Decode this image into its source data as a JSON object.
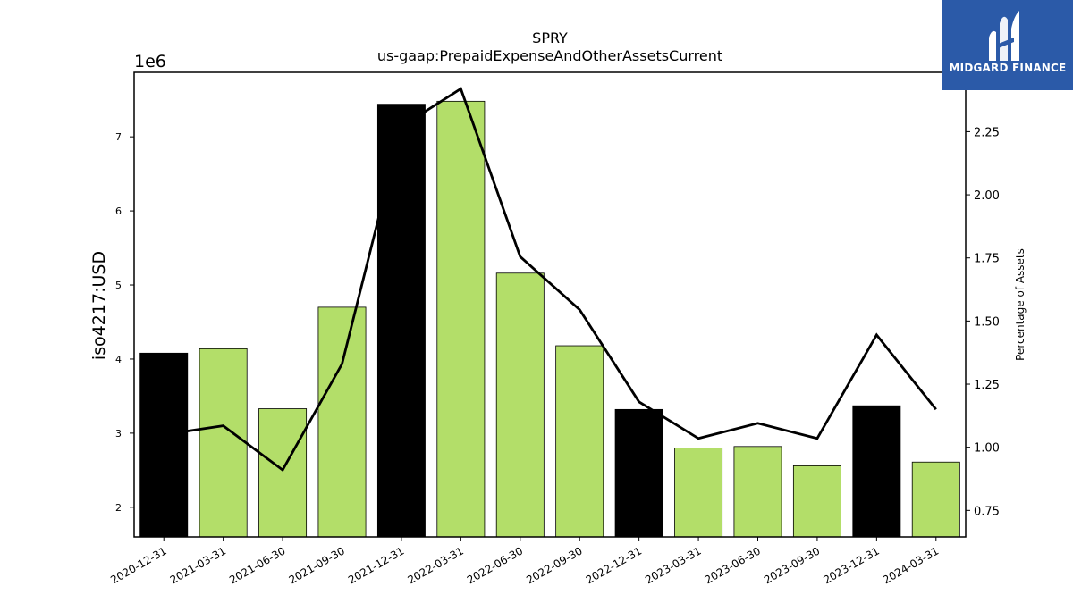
{
  "chart_data": {
    "type": "bar",
    "title": "SPRY",
    "subtitle": "us-gaap:PrepaidExpenseAndOtherAssetsCurrent",
    "ylabel": "iso4217:USD",
    "y_offset_label": "1e6",
    "y2label": "Percentage of Assets",
    "categories": [
      "2020-12-31",
      "2021-03-31",
      "2021-06-30",
      "2021-09-30",
      "2021-12-31",
      "2022-03-31",
      "2022-06-30",
      "2022-09-30",
      "2022-12-31",
      "2023-03-31",
      "2023-06-30",
      "2023-09-30",
      "2023-12-31",
      "2024-03-31"
    ],
    "series": [
      {
        "values": [
          4.08,
          4.14,
          3.33,
          4.7,
          7.44,
          7.48,
          5.16,
          4.18,
          3.32,
          2.8,
          2.82,
          2.56,
          3.37,
          2.61
        ],
        "colors": [
          "#000000",
          "#b3de69",
          "#b3de69",
          "#b3de69",
          "#000000",
          "#b3de69",
          "#b3de69",
          "#b3de69",
          "#000000",
          "#b3de69",
          "#b3de69",
          "#b3de69",
          "#000000",
          "#b3de69"
        ]
      },
      {
        "axis": "right",
        "type": "line",
        "values": [
          1.05,
          1.085,
          0.91,
          1.33,
          2.27,
          2.42,
          1.755,
          1.545,
          1.18,
          1.035,
          1.095,
          1.035,
          1.445,
          1.15
        ]
      }
    ],
    "y_ticks": [
      "2",
      "3",
      "4",
      "5",
      "6",
      "7"
    ],
    "y2_ticks": [
      "0.75",
      "1.00",
      "1.25",
      "1.50",
      "1.75",
      "2.00",
      "2.25"
    ],
    "ylim": [
      1.6,
      7.87
    ],
    "y2lim": [
      0.645,
      2.485
    ],
    "bar_colors": {
      "annual": "#000000",
      "quarterly": "#b3de69"
    },
    "line_color": "#000000"
  },
  "logo": {
    "text": "MIDGARD FINANCE",
    "color": "#2b5aa8"
  }
}
